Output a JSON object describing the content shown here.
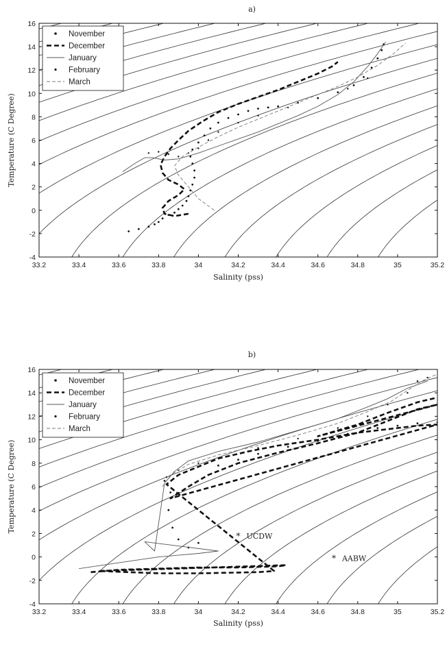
{
  "chart_data": [
    {
      "type": "line",
      "panel_label": "a)",
      "xlabel": "Salinity (pss)",
      "ylabel": "Temperature (C Degree)",
      "xlim": [
        33.2,
        35.2
      ],
      "ylim": [
        -4,
        16
      ],
      "xticks": [
        "33.2",
        "33.4",
        "33.6",
        "33.8",
        "34",
        "34.2",
        "34.4",
        "34.6",
        "34.8",
        "35",
        "35.2"
      ],
      "yticks": [
        "-4",
        "-2",
        "0",
        "2",
        "4",
        "6",
        "8",
        "10",
        "12",
        "14",
        "16"
      ],
      "legend_position": "top-left",
      "grid": false,
      "background_contours": "isopycnals",
      "series": [
        {
          "name": "November",
          "style": "dots",
          "points": [
            [
              33.65,
              -1.8
            ],
            [
              33.7,
              -1.6
            ],
            [
              33.75,
              -1.4
            ],
            [
              33.78,
              -1.2
            ],
            [
              33.8,
              -1.0
            ],
            [
              33.82,
              -0.7
            ],
            [
              33.85,
              -0.4
            ],
            [
              33.88,
              -0.2
            ],
            [
              33.9,
              0.1
            ],
            [
              33.92,
              0.4
            ],
            [
              33.94,
              0.8
            ],
            [
              33.95,
              1.2
            ],
            [
              33.96,
              1.7
            ],
            [
              33.97,
              2.2
            ],
            [
              33.98,
              2.8
            ],
            [
              33.98,
              3.4
            ],
            [
              33.97,
              4.0
            ],
            [
              33.96,
              4.6
            ],
            [
              33.97,
              5.2
            ],
            [
              34.0,
              5.8
            ],
            [
              34.03,
              6.4
            ],
            [
              34.06,
              7.0
            ],
            [
              34.1,
              7.5
            ],
            [
              34.15,
              7.9
            ],
            [
              34.2,
              8.2
            ],
            [
              34.25,
              8.5
            ],
            [
              34.3,
              8.7
            ],
            [
              34.35,
              8.8
            ],
            [
              34.4,
              8.9
            ],
            [
              34.5,
              9.2
            ],
            [
              34.6,
              9.6
            ],
            [
              34.7,
              10.1
            ],
            [
              34.78,
              10.7
            ],
            [
              34.83,
              11.4
            ],
            [
              34.87,
              12.2
            ],
            [
              34.9,
              13.0
            ],
            [
              34.92,
              13.7
            ],
            [
              34.93,
              14.2
            ]
          ]
        },
        {
          "name": "December",
          "style": "thick-dash",
          "points": [
            [
              33.95,
              -0.3
            ],
            [
              33.88,
              -0.5
            ],
            [
              33.83,
              -0.3
            ],
            [
              33.82,
              0.2
            ],
            [
              33.85,
              0.8
            ],
            [
              33.9,
              1.3
            ],
            [
              33.93,
              1.8
            ],
            [
              33.9,
              2.2
            ],
            [
              33.85,
              2.6
            ],
            [
              33.82,
              3.2
            ],
            [
              33.81,
              3.9
            ],
            [
              33.83,
              4.6
            ],
            [
              33.86,
              5.3
            ],
            [
              33.9,
              6.0
            ],
            [
              33.95,
              6.8
            ],
            [
              34.02,
              7.6
            ],
            [
              34.1,
              8.4
            ],
            [
              34.2,
              9.1
            ],
            [
              34.3,
              9.7
            ],
            [
              34.4,
              10.3
            ],
            [
              34.5,
              11.0
            ],
            [
              34.6,
              11.7
            ],
            [
              34.67,
              12.3
            ],
            [
              34.7,
              12.7
            ]
          ]
        },
        {
          "name": "January",
          "style": "thin-solid",
          "points": [
            [
              33.62,
              3.3
            ],
            [
              33.68,
              4.0
            ],
            [
              33.73,
              4.5
            ],
            [
              33.77,
              4.5
            ],
            [
              33.83,
              4.3
            ],
            [
              33.9,
              4.4
            ],
            [
              34.0,
              4.9
            ],
            [
              34.1,
              5.5
            ],
            [
              34.2,
              6.1
            ],
            [
              34.3,
              6.7
            ],
            [
              34.4,
              7.4
            ],
            [
              34.5,
              8.1
            ],
            [
              34.6,
              8.9
            ],
            [
              34.7,
              9.9
            ],
            [
              34.78,
              11.0
            ],
            [
              34.85,
              12.3
            ],
            [
              34.9,
              13.4
            ],
            [
              34.94,
              14.4
            ]
          ]
        },
        {
          "name": "February",
          "style": "sparse-dots",
          "points": [
            [
              33.75,
              4.9
            ],
            [
              33.8,
              5.0
            ],
            [
              33.85,
              4.8
            ],
            [
              33.9,
              4.6
            ],
            [
              33.95,
              4.9
            ],
            [
              34.0,
              5.3
            ],
            [
              34.05,
              6.0
            ],
            [
              34.1,
              6.7
            ],
            [
              34.2,
              7.5
            ],
            [
              34.3,
              8.1
            ],
            [
              34.45,
              8.8
            ],
            [
              34.6,
              9.6
            ],
            [
              34.75,
              10.4
            ],
            [
              34.85,
              11.3
            ]
          ]
        },
        {
          "name": "March",
          "style": "thin-dash",
          "points": [
            [
              34.08,
              0.0
            ],
            [
              34.0,
              1.0
            ],
            [
              33.95,
              2.0
            ],
            [
              33.9,
              3.0
            ],
            [
              33.88,
              3.8
            ],
            [
              33.92,
              4.6
            ],
            [
              34.0,
              5.4
            ],
            [
              34.1,
              6.3
            ],
            [
              34.2,
              7.1
            ],
            [
              34.3,
              7.8
            ],
            [
              34.4,
              8.5
            ],
            [
              34.5,
              9.2
            ],
            [
              34.6,
              9.9
            ],
            [
              34.7,
              10.6
            ],
            [
              34.8,
              11.4
            ],
            [
              34.9,
              12.4
            ],
            [
              34.98,
              13.4
            ],
            [
              35.04,
              14.3
            ]
          ]
        }
      ]
    },
    {
      "type": "line",
      "panel_label": "b)",
      "xlabel": "Salinity (pss)",
      "ylabel": "Temperature (C Degree)",
      "xlim": [
        33.2,
        35.2
      ],
      "ylim": [
        -4,
        16
      ],
      "xticks": [
        "33.2",
        "33.4",
        "33.6",
        "33.8",
        "34",
        "34.2",
        "34.4",
        "34.6",
        "34.8",
        "35",
        "35.2"
      ],
      "yticks": [
        "-4",
        "-2",
        "0",
        "2",
        "4",
        "6",
        "8",
        "10",
        "12",
        "14",
        "16"
      ],
      "legend_position": "top-left",
      "grid": false,
      "background_contours": "isopycnals",
      "annotations": [
        {
          "label": "UCDW",
          "x": 34.2,
          "y": 1.8
        },
        {
          "label": "AABW",
          "x": 34.68,
          "y": -0.1
        }
      ],
      "series": [
        {
          "name": "November",
          "style": "dots",
          "points": [
            [
              33.83,
              6.5
            ],
            [
              33.86,
              5.5
            ],
            [
              33.85,
              4.0
            ],
            [
              33.87,
              2.5
            ],
            [
              33.9,
              1.5
            ],
            [
              33.95,
              0.8
            ],
            [
              34.0,
              1.2
            ],
            [
              34.1,
              7.8
            ],
            [
              34.2,
              8.3
            ],
            [
              34.3,
              8.8
            ],
            [
              34.45,
              9.4
            ],
            [
              34.6,
              9.9
            ],
            [
              34.75,
              10.5
            ],
            [
              34.9,
              11.0
            ],
            [
              35.0,
              11.2
            ],
            [
              35.1,
              11.4
            ],
            [
              35.2,
              11.5
            ]
          ]
        },
        {
          "name": "December",
          "style": "thick-dash",
          "points": [
            [
              33.46,
              -1.3
            ],
            [
              33.6,
              -1.1
            ],
            [
              33.8,
              -1.0
            ],
            [
              34.0,
              -0.9
            ],
            [
              34.2,
              -0.9
            ],
            [
              34.4,
              -0.8
            ],
            [
              34.44,
              -0.7
            ],
            [
              33.5,
              -1.2
            ],
            [
              33.8,
              -1.4
            ],
            [
              34.0,
              -1.4
            ],
            [
              34.3,
              -1.3
            ],
            [
              34.38,
              -1.2
            ],
            [
              33.84,
              6.2
            ],
            [
              33.9,
              7.0
            ],
            [
              34.0,
              7.7
            ],
            [
              34.1,
              8.4
            ],
            [
              34.25,
              9.0
            ],
            [
              34.4,
              9.5
            ],
            [
              34.6,
              10.0
            ],
            [
              34.8,
              10.6
            ],
            [
              34.95,
              10.9
            ],
            [
              35.1,
              11.2
            ],
            [
              35.2,
              11.3
            ],
            [
              33.86,
              5.0
            ],
            [
              33.95,
              6.0
            ],
            [
              34.05,
              7.0
            ],
            [
              34.2,
              8.0
            ],
            [
              34.4,
              8.9
            ],
            [
              34.6,
              9.7
            ],
            [
              34.8,
              10.6
            ],
            [
              34.95,
              11.6
            ],
            [
              35.1,
              12.6
            ],
            [
              35.2,
              13.0
            ],
            [
              34.6,
              10.3
            ],
            [
              34.8,
              11.3
            ],
            [
              34.95,
              12.3
            ],
            [
              35.1,
              13.2
            ],
            [
              35.2,
              13.6
            ]
          ]
        },
        {
          "name": "January",
          "style": "thin-solid",
          "points": [
            [
              33.4,
              -1.0
            ],
            [
              33.6,
              -0.5
            ],
            [
              33.8,
              0.0
            ],
            [
              34.0,
              0.3
            ],
            [
              34.1,
              0.5
            ],
            [
              33.73,
              1.3
            ],
            [
              33.78,
              0.5
            ],
            [
              33.83,
              6.3
            ],
            [
              33.88,
              7.3
            ],
            [
              33.95,
              8.2
            ],
            [
              34.1,
              9.0
            ],
            [
              34.3,
              9.8
            ],
            [
              34.5,
              10.8
            ],
            [
              34.7,
              11.8
            ],
            [
              34.85,
              12.8
            ],
            [
              34.95,
              13.5
            ],
            [
              35.05,
              14.4
            ],
            [
              35.15,
              15.0
            ]
          ]
        },
        {
          "name": "February",
          "style": "sparse-dots",
          "points": [
            [
              33.84,
              6.8
            ],
            [
              33.9,
              7.4
            ],
            [
              34.0,
              8.0
            ],
            [
              34.15,
              8.6
            ],
            [
              34.3,
              9.3
            ],
            [
              34.5,
              10.1
            ],
            [
              34.7,
              11.0
            ],
            [
              34.85,
              12.0
            ],
            [
              34.95,
              13.0
            ],
            [
              35.05,
              14.0
            ],
            [
              35.1,
              15.0
            ],
            [
              35.15,
              15.3
            ]
          ]
        },
        {
          "name": "March",
          "style": "thin-dash",
          "points": [
            [
              33.82,
              6.0
            ],
            [
              33.86,
              7.0
            ],
            [
              33.95,
              7.9
            ],
            [
              34.1,
              8.7
            ],
            [
              34.3,
              9.5
            ],
            [
              34.5,
              10.4
            ],
            [
              34.7,
              11.4
            ],
            [
              34.85,
              12.4
            ],
            [
              34.97,
              13.3
            ],
            [
              35.05,
              14.2
            ],
            [
              35.12,
              15.0
            ],
            [
              35.2,
              15.6
            ]
          ]
        }
      ]
    }
  ]
}
